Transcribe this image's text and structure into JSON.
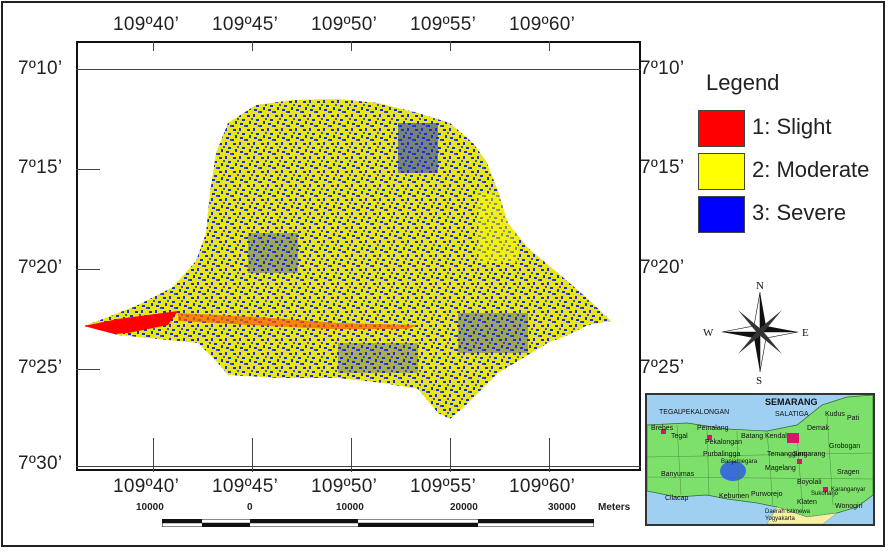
{
  "map": {
    "top_labels": [
      "109º40’",
      "109º45’",
      "109º50’",
      "109º55’",
      "109º60’"
    ],
    "bottom_labels": [
      "109º40’",
      "109º45’",
      "109º50’",
      "109º55’",
      "109º60’"
    ],
    "left_labels": [
      "7º10’",
      "7º15’",
      "7º20’",
      "7º25’",
      "7º30’"
    ],
    "right_labels": [
      "7º10’",
      "7º15’",
      "7º20’",
      "7º25’"
    ]
  },
  "legend": {
    "title": "Legend",
    "items": [
      {
        "label": "1: Slight",
        "color": "#ff0000"
      },
      {
        "label": "2: Moderate",
        "color": "#ffff00"
      },
      {
        "label": "3: Severe",
        "color": "#0000ff"
      }
    ]
  },
  "compass": {
    "n": "N",
    "s": "S",
    "e": "E",
    "w": "W"
  },
  "scale": {
    "labels": [
      "10000",
      "0",
      "10000",
      "20000",
      "30000"
    ],
    "unit": "Meters"
  },
  "inset": {
    "title": "SEMARANG",
    "labels": [
      "TEGAL",
      "PEKALONGAN",
      "SALATIGA",
      "Brebes",
      "Tegal",
      "Pemalang",
      "Pekalongan",
      "Batang",
      "Kendal",
      "Demak",
      "Pati",
      "Kudus",
      "Grobogan",
      "Temanggung",
      "Semarang",
      "Purbalingga",
      "Banyumas",
      "Banjarnegara",
      "Magelang",
      "Boyolali",
      "Sragen",
      "Karanganyar",
      "Sukoharjo",
      "Klaten",
      "Wonogiri",
      "Cilacap",
      "Kebumen",
      "Purworejo",
      "Daerah Istimewa Yogyakarta"
    ],
    "colors": {
      "land": "#7de06a",
      "sea": "#9fd0f2",
      "city": "#e0106a",
      "lake": "#3a6fd8",
      "diy": "#f6f0a0"
    }
  },
  "colors": {
    "slight": "#ff0000",
    "moderate": "#ffff00",
    "severe": "#0000ff"
  }
}
